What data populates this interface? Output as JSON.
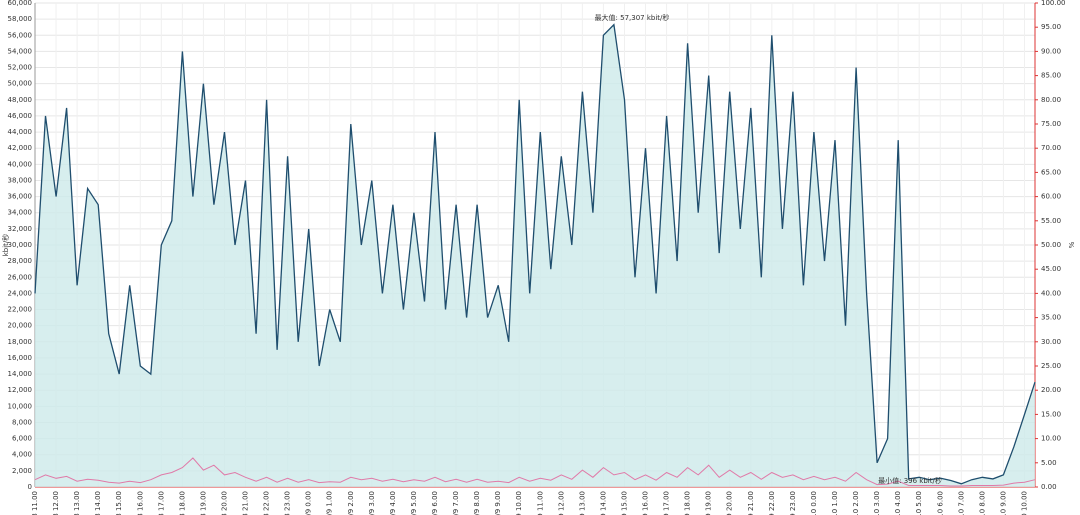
{
  "chart_data": {
    "type": "line",
    "ylabel": "kbit/秒",
    "y2label": "%",
    "annotations": [
      "最大值: 57,307 kbit/秒",
      "最小值: 396 kbit/秒"
    ],
    "categories": [
      "/9/8 11.00",
      null,
      "/9/8 12.00",
      null,
      "/9/8 13.00",
      null,
      "/9/8 14.00",
      null,
      "/9/8 15.00",
      null,
      "/9/8 16.00",
      null,
      "/9/8 17.00",
      null,
      "/9/8 18.00",
      null,
      "/9/8 19.00",
      null,
      "/9/8 20.00",
      null,
      "/9/8 21.00",
      null,
      "/9/8 22.00",
      null,
      "/9/8 23.00",
      null,
      "/9/9 0.00",
      null,
      "/9/9 1.00",
      null,
      "/9/9 2.00",
      null,
      "/9/9 3.00",
      null,
      "/9/9 4.00",
      null,
      "/9/9 5.00",
      null,
      "/9/9 6.00",
      null,
      "/9/9 7.00",
      null,
      "/9/9 8.00",
      null,
      "/9/9 9.00",
      null,
      "/9/9 10.00",
      null,
      "/9/9 11.00",
      null,
      "/9/9 12.00",
      null,
      "/9/9 13.00",
      null,
      "/9/9 14.00",
      null,
      "/9/9 15.00",
      null,
      "/9/9 16.00",
      null,
      "/9/9 17.00",
      null,
      "/9/9 18.00",
      null,
      "/9/9 19.00",
      null,
      "/9/9 20.00",
      null,
      "/9/9 21.00",
      null,
      "/9/9 22.00",
      null,
      "/9/9 23.00",
      null,
      "/9/10 0.00",
      null,
      "/9/10 1.00",
      null,
      "/9/10 2.00",
      null,
      "/9/10 3.00",
      null,
      "/9/10 4.00",
      null,
      "/9/10 5.00",
      null,
      "/9/10 6.00",
      null,
      "/9/10 7.00",
      null,
      "/9/10 8.00",
      null,
      "/9/10 9.00",
      null,
      "/9/10 10.00",
      null
    ],
    "series": [
      {
        "color": "#1f4e6e",
        "fill": "#cdeaea",
        "values": [
          24000,
          46000,
          36000,
          47000,
          25000,
          37000,
          35000,
          19000,
          14000,
          25000,
          15000,
          14000,
          30000,
          33000,
          54000,
          36000,
          50000,
          35000,
          44000,
          30000,
          38000,
          19000,
          48000,
          17000,
          41000,
          18000,
          32000,
          15000,
          22000,
          18000,
          45000,
          30000,
          38000,
          24000,
          35000,
          22000,
          34000,
          23000,
          44000,
          22000,
          35000,
          21000,
          35000,
          21000,
          25000,
          18000,
          48000,
          24000,
          44000,
          27000,
          41000,
          30000,
          49000,
          34000,
          56000,
          57307,
          48000,
          26000,
          42000,
          24000,
          46000,
          28000,
          55000,
          34000,
          51000,
          29000,
          49000,
          32000,
          47000,
          26000,
          56000,
          32000,
          49000,
          25000,
          44000,
          28000,
          43000,
          20000,
          52000,
          24000,
          3000,
          6000,
          43000,
          1000,
          1200,
          900,
          1100,
          800,
          396,
          900,
          1200,
          1000,
          1500,
          5000,
          9000,
          13000
        ]
      },
      {
        "color": "#e07aa8",
        "axis": "y2",
        "values": [
          1.5,
          2.5,
          1.8,
          2.2,
          1.2,
          1.6,
          1.4,
          1.0,
          0.8,
          1.2,
          0.9,
          1.5,
          2.5,
          3.0,
          4.0,
          6.0,
          3.5,
          4.5,
          2.5,
          3.0,
          2.0,
          1.2,
          2.0,
          1.0,
          1.8,
          1.0,
          1.5,
          0.9,
          1.1,
          1.0,
          2.0,
          1.5,
          1.8,
          1.2,
          1.6,
          1.1,
          1.5,
          1.2,
          2.0,
          1.1,
          1.6,
          1.0,
          1.6,
          1.0,
          1.2,
          0.9,
          2.0,
          1.2,
          1.8,
          1.4,
          2.5,
          1.6,
          3.5,
          2.0,
          4.0,
          2.5,
          3.0,
          1.5,
          2.5,
          1.4,
          3.0,
          2.0,
          4.0,
          2.5,
          4.5,
          2.0,
          3.5,
          2.0,
          3.0,
          1.6,
          3.0,
          2.0,
          2.5,
          1.5,
          2.2,
          1.5,
          2.0,
          1.2,
          3.0,
          1.5,
          0.5,
          0.6,
          1.2,
          0.3,
          0.3,
          0.3,
          0.3,
          0.2,
          0.2,
          0.3,
          0.3,
          0.3,
          0.4,
          0.8,
          1.0,
          1.5
        ]
      }
    ],
    "ylim": [
      0,
      60000
    ],
    "yticks": [
      0,
      {
        "value": 2000,
        "label": "2,000"
      },
      {
        "value": 4000,
        "label": "4,000"
      },
      {
        "value": 6000,
        "label": "6,000"
      },
      {
        "value": 8000,
        "label": "8,000"
      },
      {
        "value": 10000,
        "label": "10,000"
      },
      {
        "value": 12000,
        "label": "12,000"
      },
      {
        "value": 14000,
        "label": "14,000"
      },
      {
        "value": 16000,
        "label": "16,000"
      },
      {
        "value": 18000,
        "label": "18,000"
      },
      {
        "value": 20000,
        "label": "20,000"
      },
      {
        "value": 22000,
        "label": "22,000"
      },
      {
        "value": 24000,
        "label": "24,000"
      },
      {
        "value": 26000,
        "label": "26,000"
      },
      {
        "value": 28000,
        "label": "28,000"
      },
      {
        "value": 30000,
        "label": "30,000"
      },
      {
        "value": 32000,
        "label": "32,000"
      },
      {
        "value": 34000,
        "label": "34,000"
      },
      {
        "value": 36000,
        "label": "36,000"
      },
      {
        "value": 38000,
        "label": "38,000"
      },
      {
        "value": 40000,
        "label": "40,000"
      },
      {
        "value": 42000,
        "label": "42,000"
      },
      {
        "value": 44000,
        "label": "44,000"
      },
      {
        "value": 46000,
        "label": "46,000"
      },
      {
        "value": 48000,
        "label": "48,000"
      },
      {
        "value": 50000,
        "label": "50,000"
      },
      {
        "value": 52000,
        "label": "52,000"
      },
      {
        "value": 54000,
        "label": "54,000"
      },
      {
        "value": 56000,
        "label": "56,000"
      },
      {
        "value": 58000,
        "label": "58,000"
      },
      {
        "value": 60000,
        "label": "60,000"
      }
    ],
    "y2lim": [
      0,
      100
    ],
    "y2ticks": [
      {
        "value": 0,
        "label": "0.00"
      },
      {
        "value": 5,
        "label": "5.00"
      },
      {
        "value": 10,
        "label": "10.00"
      },
      {
        "value": 15,
        "label": "15.00"
      },
      {
        "value": 20,
        "label": "20.00"
      },
      {
        "value": 25,
        "label": "25.00"
      },
      {
        "value": 30,
        "label": "30.00"
      },
      {
        "value": 35,
        "label": "35.00"
      },
      {
        "value": 40,
        "label": "40.00"
      },
      {
        "value": 45,
        "label": "45.00"
      },
      {
        "value": 50,
        "label": "50.00"
      },
      {
        "value": 55,
        "label": "55.00"
      },
      {
        "value": 60,
        "label": "60.00"
      },
      {
        "value": 65,
        "label": "65.00"
      },
      {
        "value": 70,
        "label": "70.00"
      },
      {
        "value": 75,
        "label": "75.00"
      },
      {
        "value": 80,
        "label": "80.00"
      },
      {
        "value": 85,
        "label": "85.00"
      },
      {
        "value": 90,
        "label": "90.00"
      },
      {
        "value": 95,
        "label": "95.00"
      },
      {
        "value": 100,
        "label": "100.00"
      }
    ],
    "grid": true
  }
}
